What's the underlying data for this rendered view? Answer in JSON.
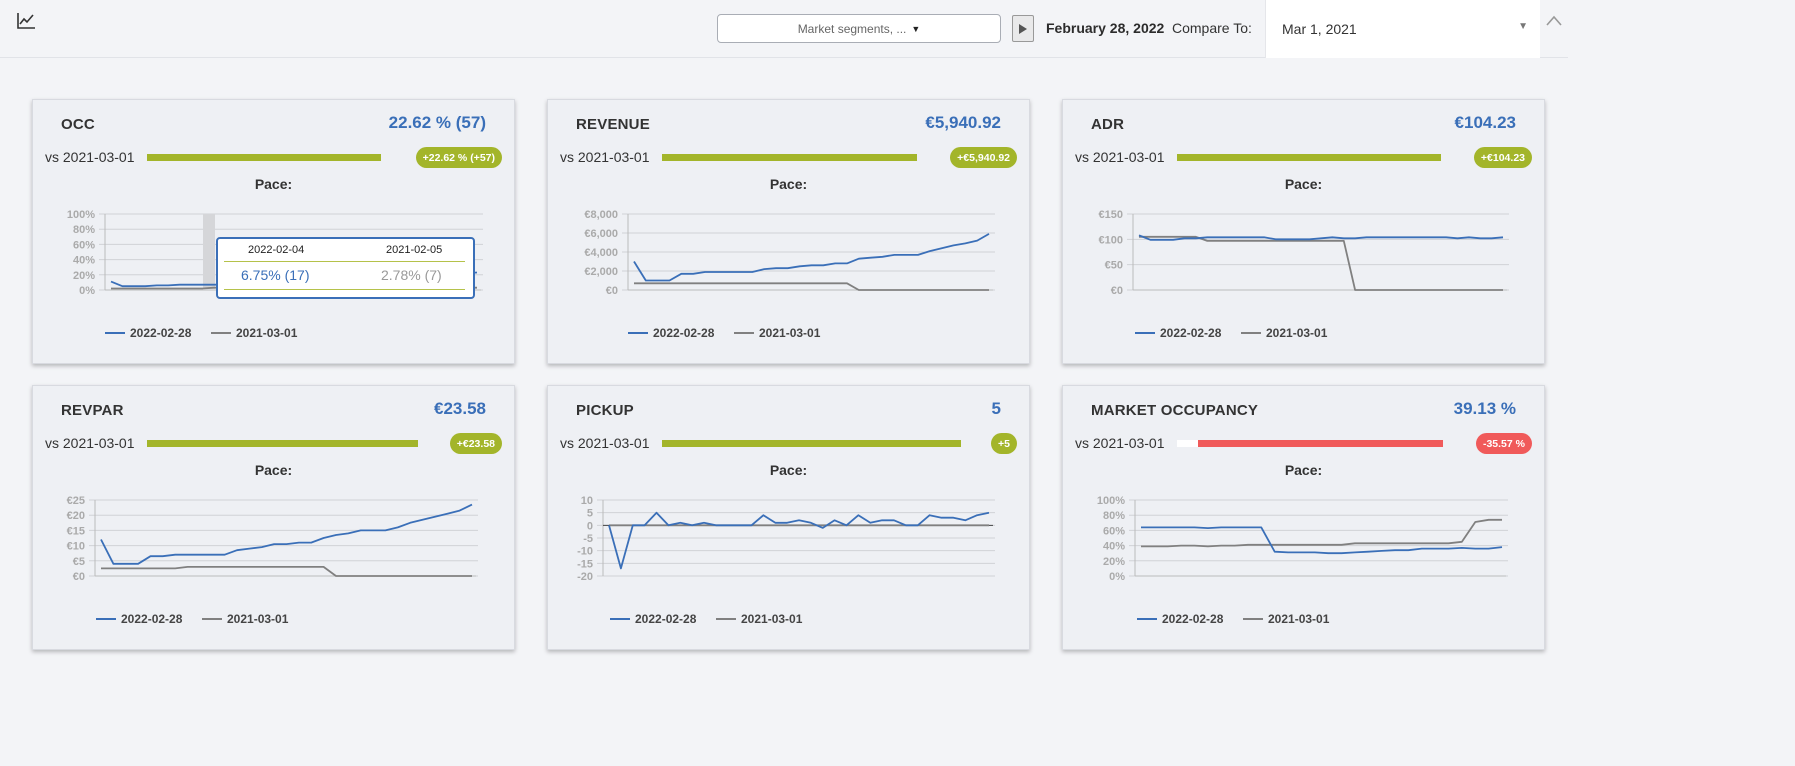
{
  "header": {
    "segments_placeholder": "Market segments, ...",
    "date": "February 28, 2022",
    "compare_label": "Compare To:",
    "compare_value": "Mar 1, 2021"
  },
  "colors": {
    "primary_series": "#3a6fb8",
    "compare_series": "#808080",
    "positive": "#a3b52a",
    "negative": "#f05a5a"
  },
  "cards": [
    {
      "title": "OCC",
      "value": "22.62 % (57)",
      "vs": "vs 2021-03-01",
      "badge": "+22.62 % (+57)",
      "badge_type": "positive",
      "pace": "Pace:",
      "bar_fraction": 1.0,
      "legend": [
        "2022-02-28",
        "2021-03-01"
      ],
      "tooltip": {
        "date1": "2022-02-04",
        "date2": "2021-02-05",
        "val1": "6.75% (17)",
        "val2": "2.78% (7)"
      },
      "chart_data": {
        "type": "line",
        "ticks": [
          "100%",
          "80%",
          "60%",
          "40%",
          "20%",
          "0%"
        ],
        "ylim": [
          0,
          100
        ],
        "series": [
          {
            "name": "2022-02-28",
            "values": [
              11,
              5,
              5,
              5,
              6,
              6,
              7,
              7,
              7,
              7,
              7,
              8,
              8,
              8,
              8,
              9,
              9,
              10,
              10,
              11,
              12,
              13,
              14,
              15,
              16,
              17,
              18,
              19,
              20,
              21,
              22,
              22,
              23
            ]
          },
          {
            "name": "2021-03-01",
            "values": [
              2,
              2,
              2,
              2,
              2,
              2,
              2,
              2,
              2,
              3,
              3,
              3,
              3,
              3,
              3,
              3,
              3,
              3,
              3,
              3,
              3,
              3,
              3,
              3,
              3,
              3,
              3,
              3,
              3,
              3,
              3,
              3,
              3
            ]
          }
        ]
      }
    },
    {
      "title": "REVENUE",
      "value": "€5,940.92",
      "vs": "vs 2021-03-01",
      "badge": "+€5,940.92",
      "badge_type": "positive",
      "pace": "Pace:",
      "bar_fraction": 1.0,
      "legend": [
        "2022-02-28",
        "2021-03-01"
      ],
      "chart_data": {
        "type": "line",
        "ticks": [
          "€8,000",
          "€6,000",
          "€4,000",
          "€2,000",
          "€0"
        ],
        "ylim": [
          0,
          8000
        ],
        "series": [
          {
            "name": "2022-02-28",
            "values": [
              3000,
              1000,
              1000,
              1000,
              1700,
              1700,
              1900,
              1900,
              1900,
              1900,
              1900,
              2200,
              2300,
              2300,
              2500,
              2600,
              2600,
              2800,
              2800,
              3300,
              3400,
              3500,
              3700,
              3700,
              3700,
              4100,
              4400,
              4700,
              4900,
              5200,
              5900
            ]
          },
          {
            "name": "2021-03-01",
            "values": [
              700,
              700,
              700,
              700,
              700,
              700,
              700,
              700,
              700,
              700,
              700,
              700,
              700,
              700,
              700,
              700,
              700,
              700,
              700,
              0,
              0,
              0,
              0,
              0,
              0,
              0,
              0,
              0,
              0,
              0,
              0
            ]
          }
        ]
      }
    },
    {
      "title": "ADR",
      "value": "€104.23",
      "vs": "vs 2021-03-01",
      "badge": "+€104.23",
      "badge_type": "positive",
      "pace": "Pace:",
      "bar_fraction": 1.0,
      "legend": [
        "2022-02-28",
        "2021-03-01"
      ],
      "chart_data": {
        "type": "line",
        "ticks": [
          "€150",
          "€100",
          "€50",
          "€0"
        ],
        "ylim": [
          0,
          150
        ],
        "series": [
          {
            "name": "2022-02-28",
            "values": [
              108,
              99,
              99,
              99,
              102,
              102,
              104,
              104,
              104,
              104,
              104,
              104,
              100,
              100,
              100,
              100,
              102,
              104,
              102,
              102,
              104,
              104,
              104,
              104,
              104,
              104,
              104,
              104,
              102,
              104,
              102,
              102,
              104
            ]
          },
          {
            "name": "2021-03-01",
            "values": [
              105,
              105,
              105,
              105,
              105,
              105,
              97,
              97,
              97,
              97,
              97,
              97,
              97,
              97,
              97,
              97,
              97,
              97,
              97,
              0,
              0,
              0,
              0,
              0,
              0,
              0,
              0,
              0,
              0,
              0,
              0,
              0,
              0
            ]
          }
        ]
      }
    },
    {
      "title": "REVPAR",
      "value": "€23.58",
      "vs": "vs 2021-03-01",
      "badge": "+€23.58",
      "badge_type": "positive",
      "pace": "Pace:",
      "bar_fraction": 1.0,
      "legend": [
        "2022-02-28",
        "2021-03-01"
      ],
      "chart_data": {
        "type": "line",
        "ticks": [
          "€25",
          "€20",
          "€15",
          "€10",
          "€5",
          "€0"
        ],
        "ylim": [
          0,
          25
        ],
        "series": [
          {
            "name": "2022-02-28",
            "values": [
              12,
              4,
              4,
              4,
              6.5,
              6.5,
              7,
              7,
              7,
              7,
              7,
              8.5,
              9,
              9.5,
              10.5,
              10.5,
              11,
              11,
              12.5,
              13.5,
              14,
              15,
              15,
              15,
              16,
              17.5,
              18.5,
              19.5,
              20.5,
              21.5,
              23.5
            ]
          },
          {
            "name": "2021-03-01",
            "values": [
              2.5,
              2.5,
              2.5,
              2.5,
              2.5,
              2.5,
              2.5,
              3,
              3,
              3,
              3,
              3,
              3,
              3,
              3,
              3,
              3,
              3,
              3,
              0,
              0,
              0,
              0,
              0,
              0,
              0,
              0,
              0,
              0,
              0,
              0
            ]
          }
        ]
      }
    },
    {
      "title": "PICKUP",
      "value": "5",
      "vs": "vs 2021-03-01",
      "badge": "+5",
      "badge_type": "positive",
      "pace": "Pace:",
      "bar_fraction": 1.0,
      "legend": [
        "2022-02-28",
        "2021-03-01"
      ],
      "chart_data": {
        "type": "line",
        "ticks": [
          "10",
          "5",
          "0",
          "-5",
          "-10",
          "-15",
          "-20"
        ],
        "ylim": [
          -20,
          10
        ],
        "series": [
          {
            "name": "2022-02-28",
            "values": [
              0,
              -17,
              0,
              0,
              5,
              0,
              1,
              0,
              1,
              0,
              0,
              0,
              0,
              4,
              1,
              1,
              2,
              1,
              -1,
              2,
              0,
              4,
              1,
              2,
              2,
              0,
              0,
              4,
              3,
              3,
              2,
              4,
              5
            ]
          },
          {
            "name": "2021-03-01",
            "values": [
              0,
              0,
              0,
              0,
              0,
              0,
              0,
              0,
              0,
              0,
              0,
              0,
              0,
              0,
              0,
              0,
              0,
              0,
              0,
              0,
              0,
              0,
              0,
              0,
              0,
              0,
              0,
              0,
              0,
              0,
              0,
              0,
              0
            ]
          }
        ]
      }
    },
    {
      "title": "MARKET OCCUPANCY",
      "value": "39.13 %",
      "vs": "vs 2021-03-01",
      "badge": "-35.57 %",
      "badge_type": "negative",
      "pace": "Pace:",
      "bar_fraction": 0.92,
      "legend": [
        "2022-02-28",
        "2021-03-01"
      ],
      "chart_data": {
        "type": "line",
        "ticks": [
          "100%",
          "80%",
          "60%",
          "40%",
          "20%",
          "0%"
        ],
        "ylim": [
          0,
          100
        ],
        "series": [
          {
            "name": "2022-02-28",
            "values": [
              64,
              64,
              64,
              64,
              64,
              63,
              64,
              64,
              64,
              64,
              32,
              31,
              31,
              31,
              30,
              30,
              31,
              32,
              33,
              34,
              34,
              36,
              36,
              36,
              37,
              36,
              36,
              38
            ]
          },
          {
            "name": "2021-03-01",
            "values": [
              39,
              39,
              39,
              40,
              40,
              39,
              40,
              40,
              41,
              41,
              41,
              41,
              41,
              41,
              41,
              41,
              43,
              43,
              43,
              43,
              43,
              43,
              43,
              43,
              45,
              71,
              74,
              74
            ]
          }
        ]
      }
    }
  ]
}
